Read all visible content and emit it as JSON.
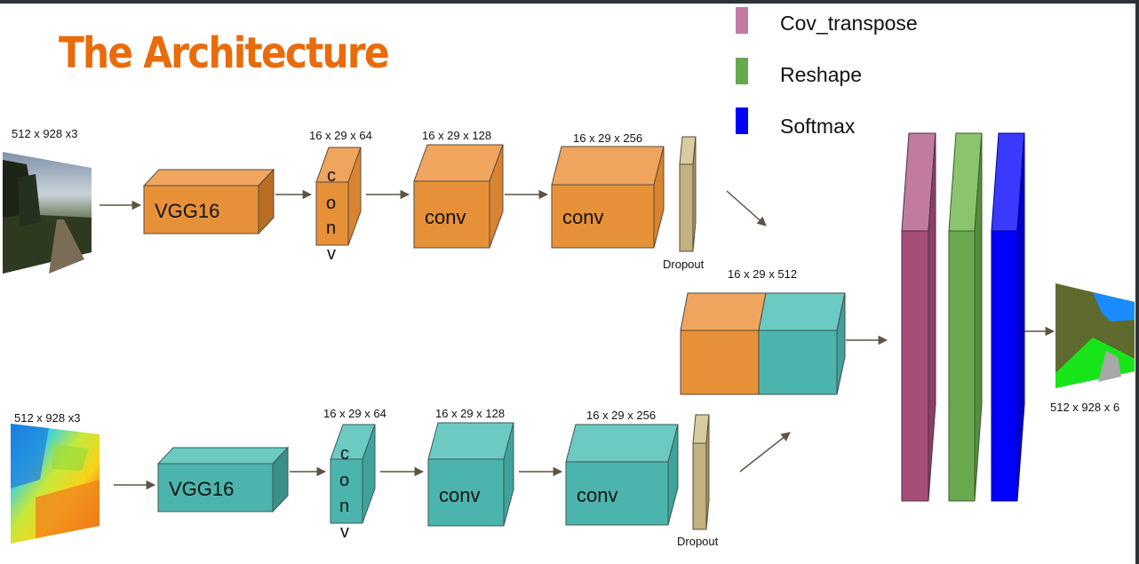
{
  "title": "The Architecture",
  "legend": [
    {
      "label": "Cov_transpose",
      "color": "#c27ba0"
    },
    {
      "label": "Reshape",
      "color": "#6aa84f"
    },
    {
      "label": "Softmax",
      "color": "#0000ff"
    }
  ],
  "colors": {
    "orange": "#e69138",
    "teal": "#4bb5ad",
    "dropout": "#c2b280",
    "magenta": "#a64d79",
    "green": "#6aa84f",
    "blue": "#0000ff",
    "title": "#ea6b0a"
  },
  "top_branch": {
    "input_dims": "512 x 928 x3",
    "backbone": "VGG16",
    "conv_letters": [
      "c",
      "o",
      "n",
      "v"
    ],
    "conv1_dims": "16 x 29 x 64",
    "conv2_dims": "16 x 29 x 128",
    "conv2_label": "conv",
    "conv3_dims": "16 x 29 x 256",
    "conv3_label": "conv",
    "dropout_label": "Dropout"
  },
  "bottom_branch": {
    "input_dims": "512 x 928 x3",
    "backbone": "VGG16",
    "conv_letters": [
      "c",
      "o",
      "n",
      "v"
    ],
    "conv1_dims": "16 x 29 x 64",
    "conv2_dims": "16 x 29 x 128",
    "conv2_label": "conv",
    "conv3_dims": "16 x 29 x 256",
    "conv3_label": "conv",
    "dropout_label": "Dropout"
  },
  "merged_dims": "16 x 29 x 512",
  "output_dims": "512 x 928 x  6"
}
